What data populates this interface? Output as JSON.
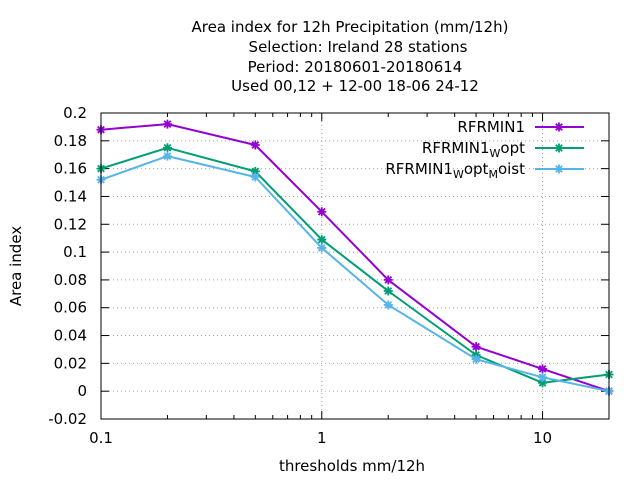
{
  "chart_data": {
    "type": "line",
    "title_lines": [
      "Area index  for 12h Precipitation (mm/12h)",
      "Selection: Ireland      28 stations",
      "Period: 20180601-20180614",
      "Used  00,12  + 12-00 18-06 24-12"
    ],
    "xlabel": "thresholds mm/12h",
    "ylabel": "Area index",
    "xscale": "log",
    "xlim": [
      0.1,
      20
    ],
    "ylim": [
      -0.02,
      0.2
    ],
    "x_ticks": [
      0.1,
      1,
      10
    ],
    "x_tick_labels": [
      "0.1",
      "1",
      "10"
    ],
    "y_ticks": [
      -0.02,
      0,
      0.02,
      0.04,
      0.06,
      0.08,
      0.1,
      0.12,
      0.14,
      0.16,
      0.18,
      0.2
    ],
    "y_tick_labels": [
      "-0.02",
      "0",
      "0.02",
      "0.04",
      "0.06",
      "0.08",
      "0.1",
      "0.12",
      "0.14",
      "0.16",
      "0.18",
      "0.2"
    ],
    "grid": true,
    "legend_position": "top-right",
    "x": [
      0.1,
      0.2,
      0.5,
      1,
      2,
      5,
      10,
      20
    ],
    "series": [
      {
        "name": "RFRMIN1",
        "name_parts": [
          [
            "RFRMIN1",
            ""
          ]
        ],
        "color": "#9400d3",
        "values": [
          0.188,
          0.192,
          0.177,
          0.129,
          0.08,
          0.032,
          0.016,
          0.0
        ]
      },
      {
        "name": "RFRMIN1Wopt",
        "name_parts": [
          [
            "RFRMIN1",
            ""
          ],
          [
            "W",
            "sub"
          ],
          [
            "opt",
            ""
          ]
        ],
        "color": "#009e73",
        "values": [
          0.16,
          0.175,
          0.158,
          0.109,
          0.072,
          0.026,
          0.006,
          0.012
        ]
      },
      {
        "name": "RFRMIN1WoptMoist",
        "name_parts": [
          [
            "RFRMIN1",
            ""
          ],
          [
            "W",
            "sub"
          ],
          [
            "opt",
            ""
          ],
          [
            "M",
            "sub"
          ],
          [
            "oist",
            ""
          ]
        ],
        "color": "#56b4e9",
        "values": [
          0.152,
          0.169,
          0.154,
          0.103,
          0.062,
          0.023,
          0.01,
          0.0
        ]
      }
    ]
  }
}
